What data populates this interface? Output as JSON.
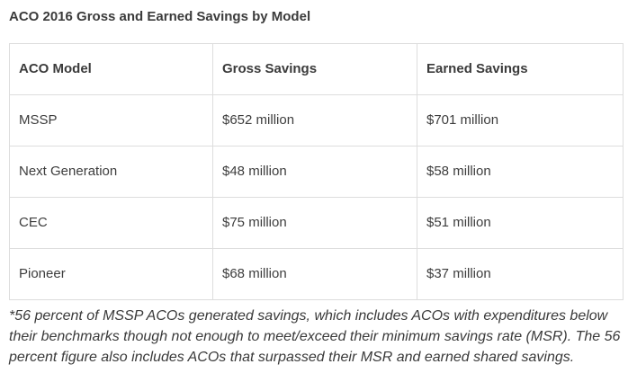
{
  "page": {
    "title": "ACO 2016 Gross and Earned Savings by Model"
  },
  "table": {
    "columns": [
      "ACO Model",
      "Gross Savings",
      "Earned Savings"
    ],
    "rows": [
      {
        "model": "MSSP",
        "gross": "$652 million",
        "earned": "$701 million"
      },
      {
        "model": "Next Generation",
        "gross": "$48 million",
        "earned": "$58 million"
      },
      {
        "model": "CEC",
        "gross": "$75 million",
        "earned": "$51 million"
      },
      {
        "model": "Pioneer",
        "gross": "$68 million",
        "earned": "$37 million"
      }
    ]
  },
  "footnote": "*56 percent of MSSP ACOs generated savings, which includes ACOs with expenditures below their benchmarks though not enough to meet/exceed their minimum savings rate (MSR). The 56 percent figure also includes ACOs that surpassed their MSR and earned shared savings.",
  "colors": {
    "text": "#3d3d3d",
    "heading_text": "#3b3b3b",
    "border": "#dddddd",
    "background": "#ffffff"
  },
  "chart_data": {
    "type": "table",
    "title": "ACO 2016 Gross and Earned Savings by Model",
    "columns": [
      "ACO Model",
      "Gross Savings",
      "Earned Savings"
    ],
    "rows": [
      [
        "MSSP",
        "$652 million",
        "$701 million"
      ],
      [
        "Next Generation",
        "$48 million",
        "$58 million"
      ],
      [
        "CEC",
        "$75 million",
        "$51 million"
      ],
      [
        "Pioneer",
        "$68 million",
        "$37 million"
      ]
    ],
    "series": [
      {
        "name": "Gross Savings ($ millions)",
        "values": [
          652,
          48,
          75,
          68
        ]
      },
      {
        "name": "Earned Savings ($ millions)",
        "values": [
          701,
          58,
          51,
          37
        ]
      }
    ],
    "categories": [
      "MSSP",
      "Next Generation",
      "CEC",
      "Pioneer"
    ],
    "footnote": "*56 percent of MSSP ACOs generated savings, which includes ACOs with expenditures below their benchmarks though not enough to meet/exceed their minimum savings rate (MSR). The 56 percent figure also includes ACOs that surpassed their MSR and earned shared savings."
  }
}
